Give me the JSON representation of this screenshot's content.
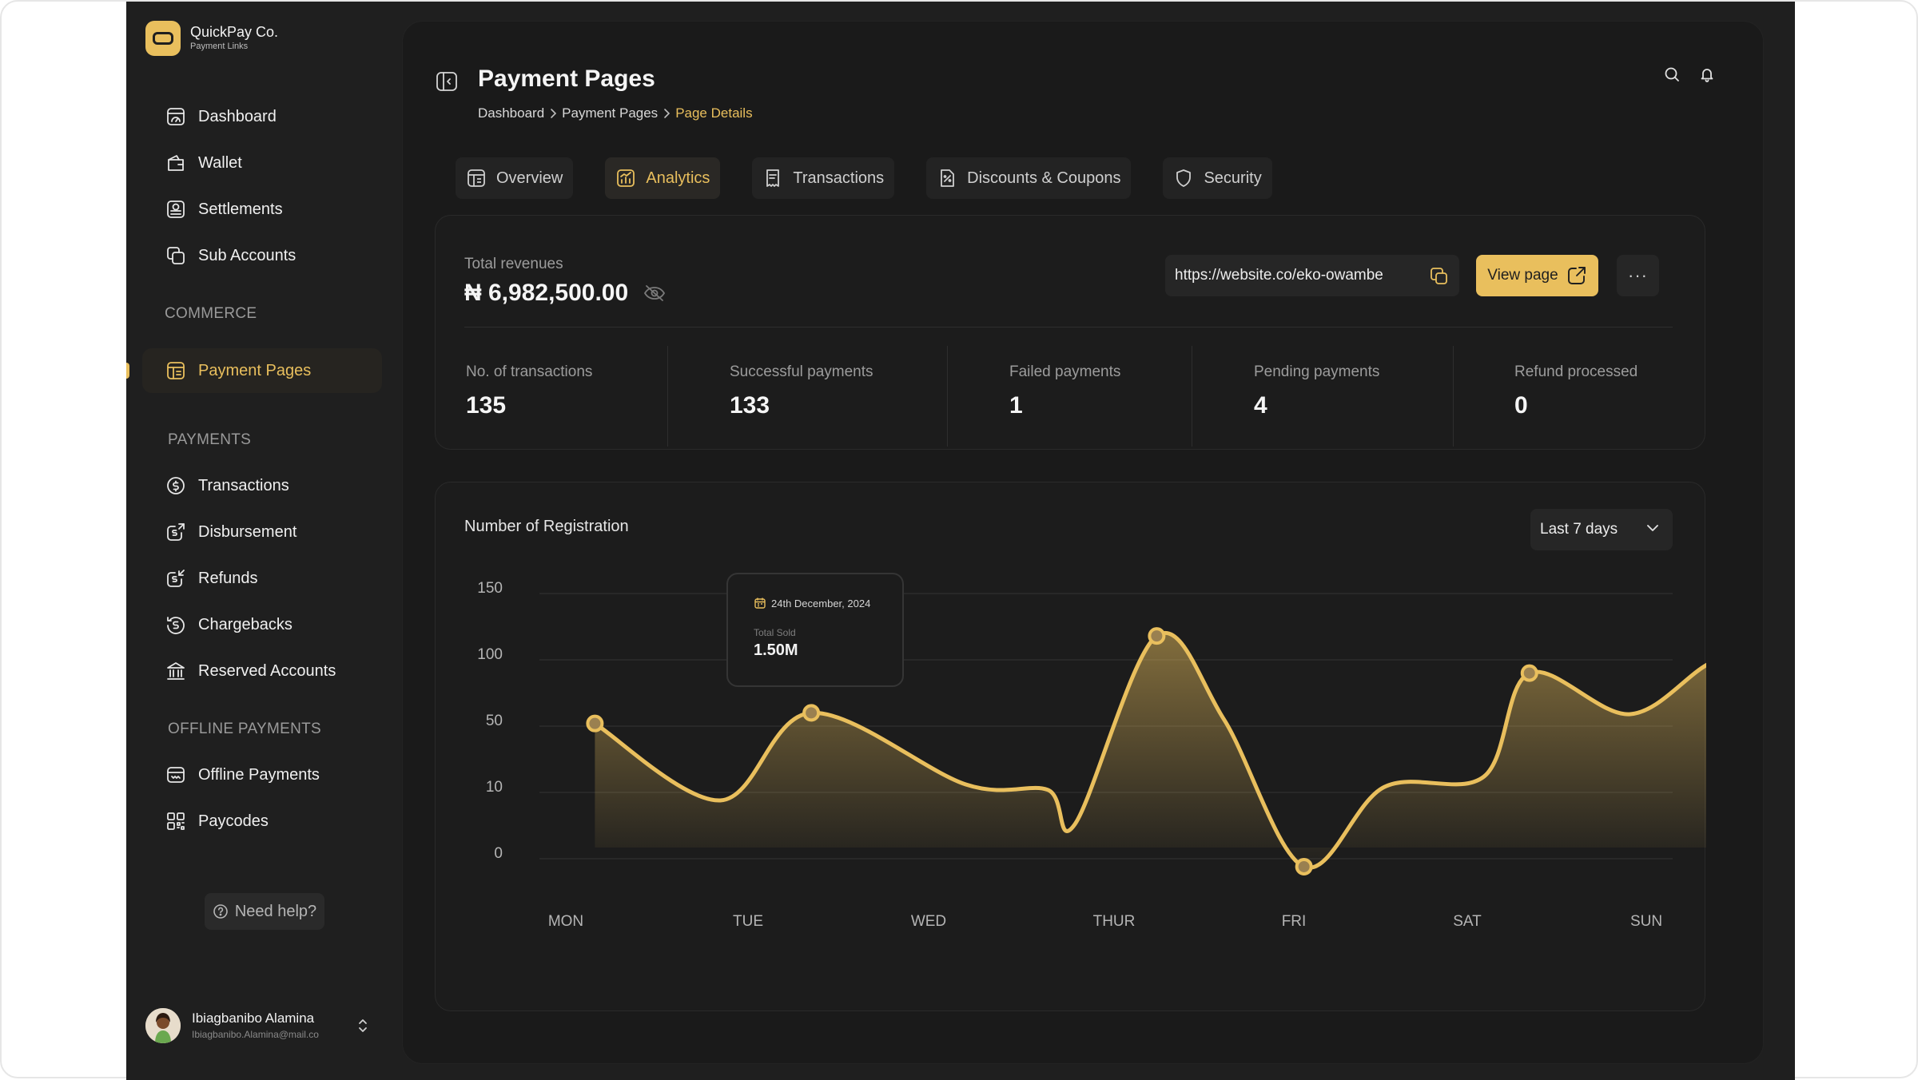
{
  "brand": {
    "name": "QuickPay Co.",
    "subtitle": "Payment Links"
  },
  "sidebar": {
    "items_top": [
      {
        "label": "Dashboard",
        "icon": "dashboard-icon"
      },
      {
        "label": "Wallet",
        "icon": "wallet-icon"
      },
      {
        "label": "Settlements",
        "icon": "settlements-icon"
      },
      {
        "label": "Sub Accounts",
        "icon": "sub-accounts-icon"
      }
    ],
    "commerce_label": "COMMERCE",
    "commerce_items": [
      {
        "label": "Payment Pages",
        "icon": "payment-pages-icon",
        "active": true
      }
    ],
    "payments_label": "PAYMENTS",
    "payments_items": [
      {
        "label": "Transactions",
        "icon": "dollar-coin-icon"
      },
      {
        "label": "Disbursement",
        "icon": "disbursement-icon"
      },
      {
        "label": "Refunds",
        "icon": "refunds-icon"
      },
      {
        "label": "Chargebacks",
        "icon": "chargebacks-icon"
      },
      {
        "label": "Reserved Accounts",
        "icon": "bank-icon"
      }
    ],
    "offline_label": "OFFLINE PAYMENTS",
    "offline_items": [
      {
        "label": "Offline Payments",
        "icon": "offline-payments-icon"
      },
      {
        "label": "Paycodes",
        "icon": "qr-code-icon"
      }
    ],
    "help_label": "Need help?"
  },
  "user": {
    "name": "Ibiagbanibo Alamina",
    "email": "Ibiagbanibo.Alamina@mail.co"
  },
  "header": {
    "title": "Payment Pages",
    "breadcrumb": [
      "Dashboard",
      "Payment Pages",
      "Page Details"
    ]
  },
  "tabs": [
    {
      "label": "Overview",
      "icon": "overview-icon"
    },
    {
      "label": "Analytics",
      "icon": "analytics-icon",
      "active": true
    },
    {
      "label": "Transactions",
      "icon": "receipt-icon"
    },
    {
      "label": "Discounts & Coupons",
      "icon": "discount-icon"
    },
    {
      "label": "Security",
      "icon": "shield-icon"
    }
  ],
  "revenue": {
    "label": "Total revenues",
    "value": "₦ 6,982,500.00",
    "url": "https://website.co/eko-owambe",
    "view_button": "View page",
    "more": "···"
  },
  "stats": [
    {
      "label": "No. of transactions",
      "value": "135"
    },
    {
      "label": "Successful payments",
      "value": "133"
    },
    {
      "label": "Failed payments",
      "value": "1"
    },
    {
      "label": "Pending payments",
      "value": "4"
    },
    {
      "label": "Refund processed",
      "value": "0"
    }
  ],
  "chart_section": {
    "title": "Number of Registration",
    "range": "Last 7 days",
    "tooltip": {
      "date": "24th December, 2024",
      "label": "Total Sold",
      "value": "1.50M"
    }
  },
  "colors": {
    "accent": "#e9bf5d",
    "background": "#1f1f1f",
    "panel": "#1a1a1a"
  },
  "chart_data": {
    "type": "area",
    "title": "Number of Registration",
    "categories": [
      "MON",
      "TUE",
      "WED",
      "THUR",
      "FRI",
      "SAT",
      "SUN"
    ],
    "y_ticks": [
      "150",
      "100",
      "50",
      "10",
      "0"
    ],
    "ylim": [
      0,
      150
    ],
    "grid": true,
    "legend": "none",
    "series": [
      {
        "x": [
          0.16,
          0.85,
          1.35,
          2.2,
          2.65,
          2.8,
          3.25,
          3.62,
          4.06,
          4.5,
          5.05,
          5.3,
          5.85,
          6.3,
          6.67
        ],
        "values": [
          52,
          22,
          60,
          28,
          26,
          13,
          118,
          55,
          -3,
          27,
          31,
          90,
          59,
          98,
          111
        ],
        "markers": [
          0,
          2,
          6,
          8,
          11
        ]
      }
    ]
  }
}
